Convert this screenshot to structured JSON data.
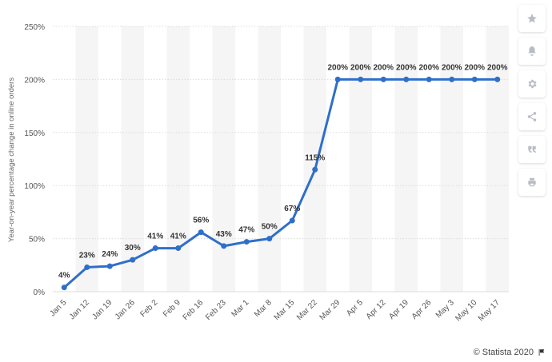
{
  "chart_data": {
    "type": "line",
    "title": "",
    "xlabel": "",
    "ylabel": "Year-on-year percentage change in online orders",
    "categories": [
      "Jan 5",
      "Jan 12",
      "Jan 19",
      "Jan 26",
      "Feb 2",
      "Feb 9",
      "Feb 16",
      "Feb 23",
      "Mar 1",
      "Mar 8",
      "Mar 15",
      "Mar 22",
      "Mar 29",
      "Apr 5",
      "Apr 12",
      "Apr 19",
      "Apr 26",
      "May 3",
      "May 10",
      "May 17"
    ],
    "values": [
      4,
      23,
      24,
      30,
      41,
      41,
      56,
      43,
      47,
      50,
      67,
      115,
      200,
      200,
      200,
      200,
      200,
      200,
      200,
      200
    ],
    "data_labels": [
      "4%",
      "23%",
      "24%",
      "30%",
      "41%",
      "41%",
      "56%",
      "43%",
      "47%",
      "50%",
      "67%",
      "115%",
      "200%",
      "200%",
      "200%",
      "200%",
      "200%",
      "200%",
      "200%",
      "200%"
    ],
    "labeled": [
      true,
      true,
      true,
      true,
      true,
      true,
      true,
      true,
      true,
      true,
      true,
      true,
      true,
      true,
      true,
      true,
      true,
      true,
      true,
      true
    ],
    "ylim": [
      0,
      250
    ],
    "yticks": [
      0,
      50,
      100,
      150,
      200,
      250
    ],
    "ytick_labels": [
      "0%",
      "50%",
      "100%",
      "150%",
      "200%",
      "250%"
    ],
    "grid": true,
    "line_color": "#2f6fca"
  },
  "toolbar": {
    "buttons": [
      {
        "name": "favorite-button",
        "icon": "star-icon"
      },
      {
        "name": "notification-button",
        "icon": "bell-icon"
      },
      {
        "name": "settings-button",
        "icon": "gear-icon"
      },
      {
        "name": "share-button",
        "icon": "share-icon"
      },
      {
        "name": "cite-button",
        "icon": "quote-icon"
      },
      {
        "name": "print-button",
        "icon": "print-icon"
      }
    ]
  },
  "credit": {
    "text": "© Statista 2020"
  }
}
